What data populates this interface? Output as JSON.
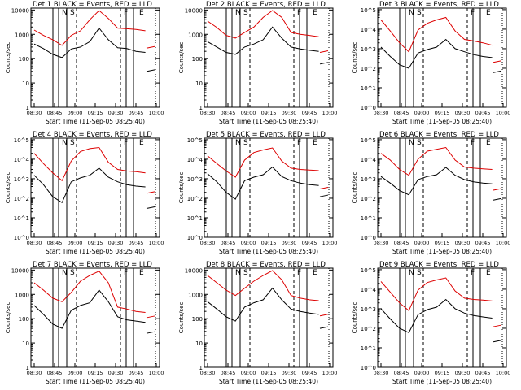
{
  "figure": {
    "subtitle_xlabel": "Start Time (11-Sep-05 08:25:40)",
    "ylabel": "Counts/sec"
  },
  "colors": {
    "events": "#000000",
    "lld": "#dd0000",
    "axis": "#000000",
    "background": "#ffffff"
  },
  "chart_data": [
    {
      "type": "line",
      "title": "Det 1 BLACK = Events, RED = LLD",
      "xlabel": "Start Time (11-Sep-05 08:25:40)",
      "ylabel": "Counts/sec",
      "x_ticks": [
        "08:30",
        "08:45",
        "09:00",
        "09:15",
        "09:30",
        "09:45",
        "10:00"
      ],
      "y_ticks": [
        "1",
        "10",
        "100",
        "1000",
        "10000"
      ],
      "ylim": [
        1,
        12000
      ],
      "marker_labels": [
        "N",
        "S",
        "F",
        "E"
      ],
      "series": [
        {
          "name": "Events",
          "values": [
            400,
            260,
            150,
            110,
            250,
            300,
            500,
            1800,
            600,
            280,
            260,
            200,
            180,
            30
          ]
        },
        {
          "name": "LLD",
          "values": [
            1500,
            900,
            600,
            350,
            900,
            1400,
            4000,
            9500,
            4500,
            1800,
            1700,
            1600,
            1400,
            270
          ]
        }
      ]
    },
    {
      "type": "line",
      "title": "Det 2 BLACK = Events, RED = LLD",
      "xlabel": "Start Time (11-Sep-05 08:25:40)",
      "ylabel": "Counts/sec",
      "x_ticks": [
        "08:30",
        "08:45",
        "09:00",
        "09:15",
        "09:30",
        "09:45",
        "10:00"
      ],
      "y_ticks": [
        "1",
        "10",
        "100",
        "1000",
        "10000"
      ],
      "ylim": [
        1,
        12000
      ],
      "marker_labels": [
        "N",
        "S",
        "F",
        "E"
      ],
      "series": [
        {
          "name": "Events",
          "values": [
            500,
            300,
            180,
            150,
            300,
            400,
            600,
            2000,
            700,
            300,
            250,
            220,
            200,
            60
          ]
        },
        {
          "name": "LLD",
          "values": [
            3500,
            1900,
            900,
            700,
            1200,
            2000,
            5000,
            9500,
            5000,
            1200,
            1000,
            900,
            800,
            180
          ]
        }
      ]
    },
    {
      "type": "line",
      "title": "Det 3 BLACK = Events, RED = LLD",
      "xlabel": "Start Time (11-Sep-05 08:25:40)",
      "ylabel": "Counts/sec",
      "x_ticks": [
        "08:30",
        "08:45",
        "09:00",
        "09:15",
        "09:30",
        "09:45",
        "10:00"
      ],
      "y_ticks": [
        "10^0",
        "10^1",
        "10^2",
        "10^3",
        "10^4",
        "10^5"
      ],
      "ylim": [
        1,
        120000
      ],
      "marker_labels": [
        "N",
        "S",
        "F",
        "E"
      ],
      "series": [
        {
          "name": "Events",
          "values": [
            1200,
            400,
            150,
            100,
            600,
            900,
            1200,
            3000,
            1000,
            700,
            500,
            400,
            350,
            60
          ]
        },
        {
          "name": "LLD",
          "values": [
            30000,
            8000,
            2000,
            700,
            9000,
            20000,
            30000,
            40000,
            8000,
            3000,
            2500,
            2000,
            1500,
            200
          ]
        }
      ]
    },
    {
      "type": "line",
      "title": "Det 4 BLACK = Events, RED = LLD",
      "xlabel": "Start Time (11-Sep-05 08:25:40)",
      "ylabel": "Counts/sec",
      "x_ticks": [
        "08:30",
        "08:45",
        "09:00",
        "09:15",
        "09:30",
        "09:45",
        "10:00"
      ],
      "y_ticks": [
        "10^0",
        "10^1",
        "10^2",
        "10^3",
        "10^4",
        "10^5"
      ],
      "ylim": [
        1,
        120000
      ],
      "marker_labels": [
        "N",
        "S",
        "F",
        "E"
      ],
      "series": [
        {
          "name": "Events",
          "values": [
            1500,
            500,
            120,
            60,
            700,
            1100,
            1500,
            3500,
            1200,
            700,
            500,
            420,
            380,
            30
          ]
        },
        {
          "name": "LLD",
          "values": [
            20000,
            6000,
            2000,
            800,
            8000,
            25000,
            35000,
            40000,
            7000,
            3000,
            2500,
            2300,
            2000,
            180
          ]
        }
      ]
    },
    {
      "type": "line",
      "title": "Det 5 BLACK = Events, RED = LLD",
      "xlabel": "Start Time (11-Sep-05 08:25:40)",
      "ylabel": "Counts/sec",
      "x_ticks": [
        "08:30",
        "08:45",
        "09:00",
        "09:15",
        "09:30",
        "09:45",
        "10:00"
      ],
      "y_ticks": [
        "10^0",
        "10^1",
        "10^2",
        "10^3",
        "10^4",
        "10^5"
      ],
      "ylim": [
        1,
        120000
      ],
      "marker_labels": [
        "N",
        "S",
        "F",
        "E"
      ],
      "series": [
        {
          "name": "Events",
          "values": [
            1800,
            700,
            200,
            90,
            800,
            1200,
            1600,
            4000,
            1300,
            800,
            600,
            500,
            450,
            120
          ]
        },
        {
          "name": "LLD",
          "values": [
            15000,
            6000,
            2500,
            1200,
            9000,
            22000,
            30000,
            38000,
            8000,
            3500,
            3000,
            2800,
            2600,
            300
          ]
        }
      ]
    },
    {
      "type": "line",
      "title": "Det 6 BLACK = Events, RED = LLD",
      "xlabel": "Start Time (11-Sep-05 08:25:40)",
      "ylabel": "Counts/sec",
      "x_ticks": [
        "08:30",
        "08:45",
        "09:00",
        "09:15",
        "09:30",
        "09:45",
        "10:00"
      ],
      "y_ticks": [
        "10^0",
        "10^1",
        "10^2",
        "10^3",
        "10^4",
        "10^5"
      ],
      "ylim": [
        1,
        120000
      ],
      "marker_labels": [
        "N",
        "S",
        "F",
        "E"
      ],
      "series": [
        {
          "name": "Events",
          "values": [
            1300,
            600,
            250,
            150,
            900,
            1300,
            1600,
            3800,
            1500,
            900,
            700,
            600,
            550,
            80
          ]
        },
        {
          "name": "LLD",
          "values": [
            20000,
            9000,
            3000,
            1500,
            10000,
            26000,
            32000,
            40000,
            9000,
            4000,
            3500,
            3200,
            3000,
            260
          ]
        }
      ]
    },
    {
      "type": "line",
      "title": "Det 7 BLACK = Events, RED = LLD",
      "xlabel": "Start Time (11-Sep-05 08:25:40)",
      "ylabel": "Counts/sec",
      "x_ticks": [
        "08:30",
        "08:45",
        "09:00",
        "09:15",
        "09:30",
        "09:45",
        "10:00"
      ],
      "y_ticks": [
        "1",
        "10",
        "100",
        "1000",
        "10000"
      ],
      "ylim": [
        1,
        12000
      ],
      "marker_labels": [
        "N",
        "S",
        "F",
        "E"
      ],
      "series": [
        {
          "name": "Events",
          "values": [
            350,
            150,
            60,
            40,
            220,
            350,
            450,
            1500,
            500,
            120,
            90,
            80,
            70,
            25
          ]
        },
        {
          "name": "LLD",
          "values": [
            3000,
            1500,
            700,
            500,
            1200,
            3500,
            6000,
            9000,
            3000,
            300,
            250,
            200,
            180,
            110
          ]
        }
      ]
    },
    {
      "type": "line",
      "title": "Det 8 BLACK = Events, RED = LLD",
      "xlabel": "Start Time (11-Sep-05 08:25:40)",
      "ylabel": "Counts/sec",
      "x_ticks": [
        "08:30",
        "08:45",
        "09:00",
        "09:15",
        "09:30",
        "09:45",
        "10:00"
      ],
      "y_ticks": [
        "1",
        "10",
        "100",
        "1000",
        "10000"
      ],
      "ylim": [
        1,
        12000
      ],
      "marker_labels": [
        "N",
        "S",
        "F",
        "E"
      ],
      "series": [
        {
          "name": "Events",
          "values": [
            500,
            250,
            120,
            80,
            300,
            450,
            600,
            1800,
            600,
            250,
            200,
            170,
            150,
            40
          ]
        },
        {
          "name": "LLD",
          "values": [
            6000,
            3000,
            1500,
            900,
            1800,
            3500,
            6000,
            9500,
            4000,
            900,
            700,
            600,
            550,
            130
          ]
        }
      ]
    },
    {
      "type": "line",
      "title": "Det 9 BLACK = Events, RED = LLD",
      "xlabel": "Start Time (11-Sep-05 08:25:40)",
      "ylabel": "Counts/sec",
      "x_ticks": [
        "08:30",
        "08:45",
        "09:00",
        "09:15",
        "09:30",
        "09:45",
        "10:00"
      ],
      "y_ticks": [
        "10^0",
        "10^1",
        "10^2",
        "10^3",
        "10^4",
        "10^5"
      ],
      "ylim": [
        1,
        120000
      ],
      "marker_labels": [
        "N",
        "S",
        "F",
        "E"
      ],
      "series": [
        {
          "name": "Events",
          "values": [
            1000,
            300,
            100,
            60,
            500,
            900,
            1200,
            3000,
            1000,
            600,
            450,
            380,
            330,
            20
          ]
        },
        {
          "name": "LLD",
          "values": [
            25000,
            7000,
            2000,
            800,
            9000,
            22000,
            30000,
            38000,
            8000,
            3500,
            3000,
            2800,
            2500,
            120
          ]
        }
      ]
    }
  ]
}
